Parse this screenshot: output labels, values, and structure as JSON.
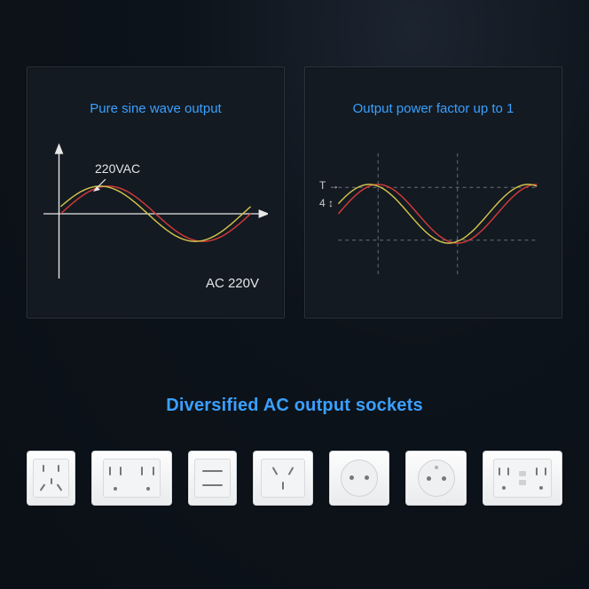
{
  "panel_left": {
    "title": "Pure sine wave output",
    "wave_label": "220VAC",
    "caption": "AC 220V",
    "chart": {
      "type": "line",
      "background_color": "#131a22",
      "axis_color": "#e8e8e8",
      "arrowheads": true,
      "xlim": [
        0,
        360
      ],
      "ylim": [
        -1,
        1
      ],
      "series": [
        {
          "name": "red",
          "color": "#d23a3a",
          "phase_deg": 0,
          "amplitude": 1,
          "line_width": 1.5
        },
        {
          "name": "yel",
          "color": "#d2c24a",
          "phase_deg": 15,
          "amplitude": 1,
          "line_width": 1.5
        }
      ]
    }
  },
  "panel_right": {
    "title": "Output power factor up to 1",
    "axis_marks": {
      "t_label": "T →",
      "v_label": "4 ↕"
    },
    "chart": {
      "type": "line",
      "background_color": "#131a22",
      "grid_color": "#6b7077",
      "grid_dash": "4,4",
      "xlim": [
        0,
        450
      ],
      "ylim": [
        -1.1,
        1.1
      ],
      "vgrid_x": [
        90,
        270
      ],
      "hgrid_y": [
        -0.9,
        0.9
      ],
      "series": [
        {
          "name": "red",
          "color": "#d23a3a",
          "phase_deg": 0,
          "amplitude": 1,
          "line_width": 1.5
        },
        {
          "name": "yel",
          "color": "#d2c24a",
          "phase_deg": 20,
          "amplitude": 1,
          "line_width": 1.5
        }
      ]
    }
  },
  "sockets_title": "Diversified AC output sockets",
  "sockets": [
    {
      "id": "cn-5pin",
      "width": 58
    },
    {
      "id": "us-dual",
      "width": 96
    },
    {
      "id": "cn-2pin",
      "width": 58
    },
    {
      "id": "au",
      "width": 72
    },
    {
      "id": "eu-schuko",
      "width": 72
    },
    {
      "id": "eu-french",
      "width": 72
    },
    {
      "id": "us-gfci",
      "width": 96
    }
  ],
  "colors": {
    "page_bg": "#0e141b",
    "panel_bg": "#131a22",
    "panel_border": "#2b333c",
    "accent": "#3aa0ff",
    "text": "#e2e6e9"
  }
}
